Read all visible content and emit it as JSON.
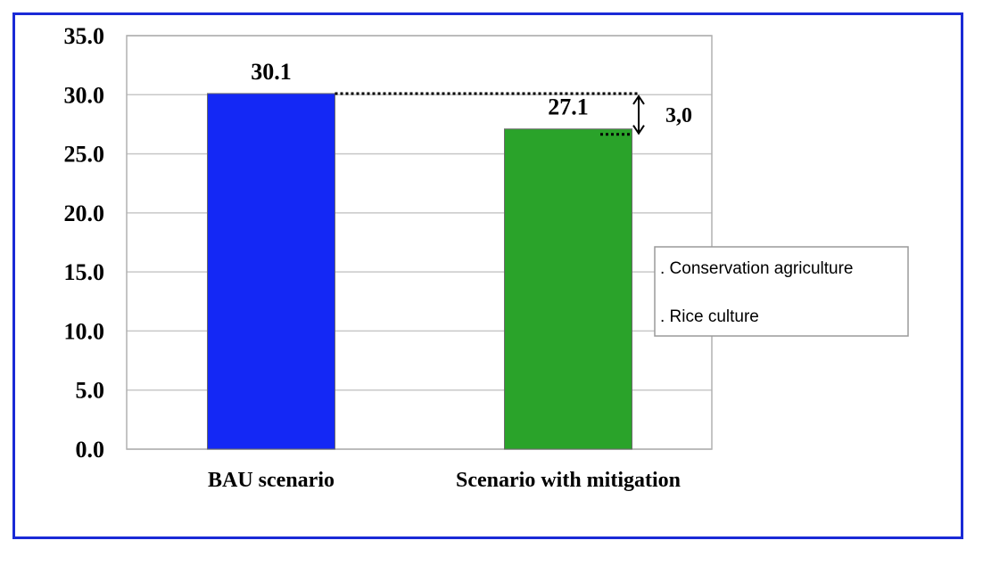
{
  "chart_data": {
    "type": "bar",
    "categories": [
      "BAU scenario",
      "Scenario with mitigation"
    ],
    "values": [
      30.1,
      27.1
    ],
    "value_labels": [
      "30.1",
      "27.1"
    ],
    "colors": [
      "#1428f5",
      "#2aa32a"
    ],
    "ylim": [
      0,
      35
    ],
    "yticks": [
      "0.0",
      "5.0",
      "10.0",
      "15.0",
      "20.0",
      "25.0",
      "30.0",
      "35.0"
    ],
    "ytick_values": [
      0,
      5,
      10,
      15,
      20,
      25,
      30,
      35
    ],
    "grid": true,
    "title": "",
    "xlabel": "",
    "ylabel": "",
    "annotation": {
      "difference_label": "3,0",
      "notes": [
        ". Conservation agriculture",
        ". Rice culture"
      ]
    }
  },
  "frame_color": "#1a2ad6"
}
